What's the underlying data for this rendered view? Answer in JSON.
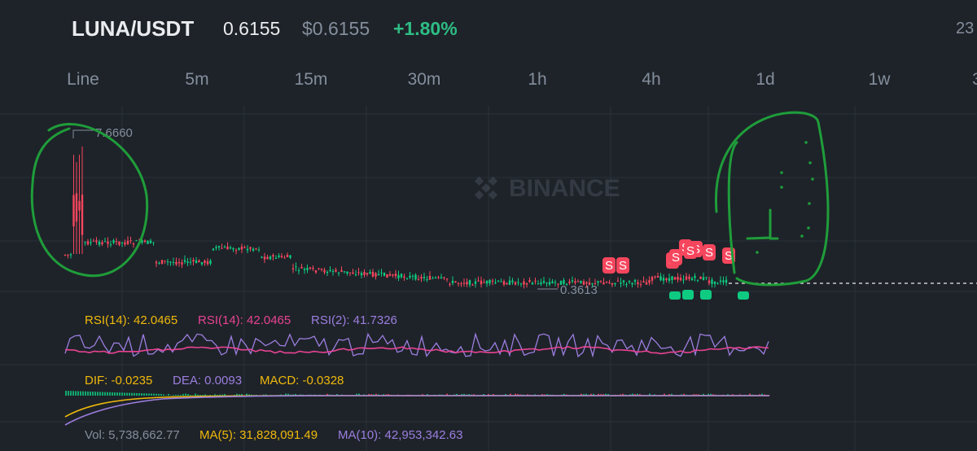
{
  "header": {
    "pair": "LUNA/USDT",
    "last_price": "0.6155",
    "usd_price": "$0.6155",
    "change": "+1.80%",
    "right_clipped": "23"
  },
  "tabs": [
    "Line",
    "5m",
    "15m",
    "30m",
    "1h",
    "4h",
    "1d",
    "1w",
    "3"
  ],
  "chart": {
    "watermark": "BINANCE",
    "high_label": "7.6660",
    "low_label": "0.3613",
    "trade_markers": [
      "S",
      "S",
      "S",
      "S",
      "S",
      "S",
      "S",
      "S",
      "S"
    ]
  },
  "rsi": {
    "rsi14a_label": "RSI(14): 42.0465",
    "rsi14b_label": "RSI(14): 42.0465",
    "rsi2_label": "RSI(2): 41.7326"
  },
  "macd": {
    "dif_label": "DIF: -0.0235",
    "dea_label": "DEA: 0.0093",
    "macd_label": "MACD: -0.0328"
  },
  "volume": {
    "vol_label": "Vol: 5,738,662.77",
    "ma5_label": "MA(5): 31,828,091.49",
    "ma10_label": "MA(10): 42,953,342.63"
  },
  "colors": {
    "up": "#0ecb81",
    "down": "#f6465d",
    "rsi_yellow": "#f0b90b",
    "rsi_pink": "#e84393",
    "rsi_purple": "#9c7ee0",
    "annotation": "#1f9d3a"
  }
}
